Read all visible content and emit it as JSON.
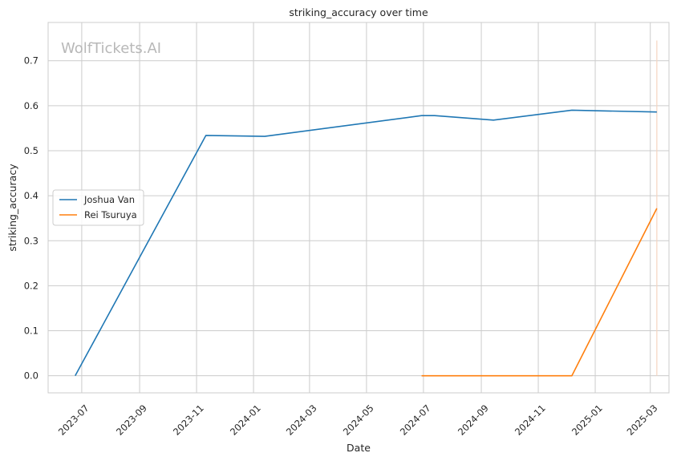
{
  "chart_data": {
    "type": "line",
    "title": "striking_accuracy over time",
    "xlabel": "Date",
    "ylabel": "striking_accuracy",
    "watermark": "WolfTickets.AI",
    "x_ticks": [
      "2023-07",
      "2023-09",
      "2023-11",
      "2024-01",
      "2024-03",
      "2024-05",
      "2024-07",
      "2024-09",
      "2024-11",
      "2025-01",
      "2025-03"
    ],
    "y_ticks": [
      "0.0",
      "0.1",
      "0.2",
      "0.3",
      "0.4",
      "0.5",
      "0.6",
      "0.7"
    ],
    "xlim": [
      "2023-05-26",
      "2025-03-21"
    ],
    "ylim": [
      -0.038,
      0.785
    ],
    "grid": true,
    "legend_position": "center-left",
    "series": [
      {
        "name": "Joshua Van",
        "color": "#1f77b4",
        "points": [
          [
            "2023-06-24",
            0.0
          ],
          [
            "2023-11-11",
            0.534
          ],
          [
            "2024-01-13",
            0.532
          ],
          [
            "2024-06-29",
            0.578
          ],
          [
            "2024-07-13",
            0.578
          ],
          [
            "2024-09-14",
            0.568
          ],
          [
            "2024-12-07",
            0.59
          ],
          [
            "2025-03-08",
            0.586
          ]
        ]
      },
      {
        "name": "Rei Tsuruya",
        "color": "#ff7f0e",
        "points": [
          [
            "2024-06-29",
            0.0
          ],
          [
            "2024-12-07",
            0.0
          ],
          [
            "2025-03-08",
            0.372
          ]
        ]
      }
    ],
    "reference_line": {
      "date": "2025-03-08",
      "color": "#f5d5c0"
    }
  }
}
